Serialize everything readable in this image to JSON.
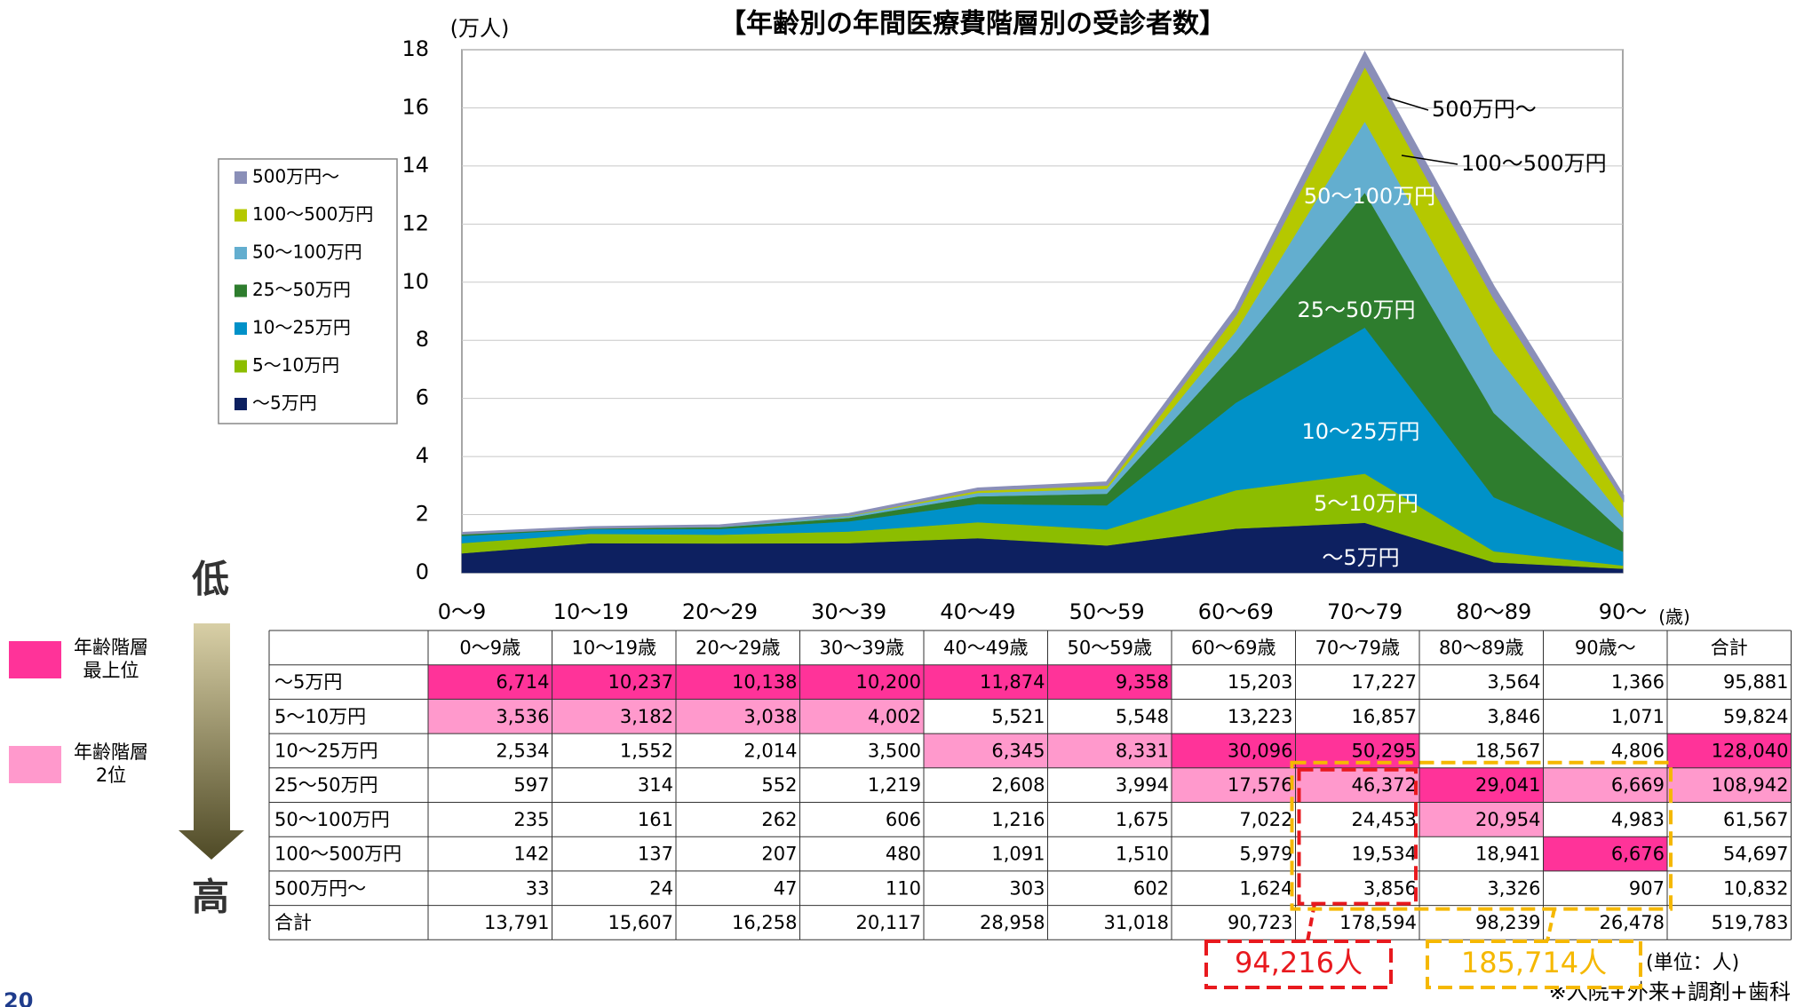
{
  "chart_data": {
    "type": "stacked_area",
    "title": "【年齢別の年間医療費階層別の受診者数】",
    "y_label": "(万人)",
    "x_label": "(歳)",
    "categories": [
      "0～9",
      "10～19",
      "20～29",
      "30～39",
      "40～49",
      "50～59",
      "60～69",
      "70～79",
      "80～89",
      "90～"
    ],
    "ylim": [
      0,
      18
    ],
    "yticks": [
      0,
      2,
      4,
      6,
      8,
      10,
      12,
      14,
      16,
      18
    ],
    "grid": true,
    "series": [
      {
        "name": "～5万円",
        "color": "#0d2060",
        "values": [
          0.67,
          1.02,
          1.01,
          1.02,
          1.19,
          0.94,
          1.52,
          1.72,
          0.36,
          0.14
        ]
      },
      {
        "name": "5～10万円",
        "color": "#8cbd00",
        "values": [
          0.35,
          0.32,
          0.3,
          0.4,
          0.55,
          0.55,
          1.32,
          1.69,
          0.38,
          0.11
        ]
      },
      {
        "name": "10～25万円",
        "color": "#0091c8",
        "values": [
          0.25,
          0.16,
          0.2,
          0.35,
          0.63,
          0.83,
          3.01,
          5.03,
          1.86,
          0.48
        ]
      },
      {
        "name": "25～50万円",
        "color": "#2e7d2e",
        "values": [
          0.06,
          0.03,
          0.06,
          0.12,
          0.26,
          0.4,
          1.76,
          4.64,
          2.9,
          0.67
        ]
      },
      {
        "name": "50～100万円",
        "color": "#63aecf",
        "values": [
          0.02,
          0.02,
          0.03,
          0.06,
          0.12,
          0.17,
          0.7,
          2.45,
          2.1,
          0.5
        ]
      },
      {
        "name": "100～500万円",
        "color": "#b5c800",
        "values": [
          0.01,
          0.01,
          0.02,
          0.05,
          0.11,
          0.15,
          0.6,
          1.95,
          1.89,
          0.67
        ]
      },
      {
        "name": "500万円～",
        "color": "#8a8fb8",
        "values": [
          0.0,
          0.0,
          0.0,
          0.01,
          0.03,
          0.06,
          0.16,
          0.39,
          0.33,
          0.09
        ]
      }
    ],
    "annotations": [
      "500万円～",
      "100～500万円",
      "50～100万円",
      "25～50万円",
      "10～25万円",
      "5～10万円",
      "～5万円"
    ]
  },
  "table": {
    "columns": [
      "0～9歳",
      "10～19歳",
      "20～29歳",
      "30～39歳",
      "40～49歳",
      "50～59歳",
      "60～69歳",
      "70～79歳",
      "80～89歳",
      "90歳～",
      "合計"
    ],
    "rows": [
      {
        "label": "～5万円",
        "cells": [
          "6,714",
          "10,237",
          "10,138",
          "10,200",
          "11,874",
          "9,358",
          "15,203",
          "17,227",
          "3,564",
          "1,366",
          "95,881"
        ],
        "rank": [
          1,
          1,
          1,
          1,
          1,
          1,
          null,
          null,
          null,
          null,
          null
        ]
      },
      {
        "label": "5～10万円",
        "cells": [
          "3,536",
          "3,182",
          "3,038",
          "4,002",
          "5,521",
          "5,548",
          "13,223",
          "16,857",
          "3,846",
          "1,071",
          "59,824"
        ],
        "rank": [
          2,
          2,
          2,
          2,
          null,
          null,
          null,
          null,
          null,
          null,
          null
        ]
      },
      {
        "label": "10～25万円",
        "cells": [
          "2,534",
          "1,552",
          "2,014",
          "3,500",
          "6,345",
          "8,331",
          "30,096",
          "50,295",
          "18,567",
          "4,806",
          "128,040"
        ],
        "rank": [
          null,
          null,
          null,
          null,
          2,
          2,
          1,
          1,
          null,
          null,
          1
        ]
      },
      {
        "label": "25～50万円",
        "cells": [
          "597",
          "314",
          "552",
          "1,219",
          "2,608",
          "3,994",
          "17,576",
          "46,372",
          "29,041",
          "6,669",
          "108,942"
        ],
        "rank": [
          null,
          null,
          null,
          null,
          null,
          null,
          2,
          2,
          1,
          2,
          2
        ]
      },
      {
        "label": "50～100万円",
        "cells": [
          "235",
          "161",
          "262",
          "606",
          "1,216",
          "1,675",
          "7,022",
          "24,453",
          "20,954",
          "4,983",
          "61,567"
        ],
        "rank": [
          null,
          null,
          null,
          null,
          null,
          null,
          null,
          null,
          2,
          null,
          null
        ]
      },
      {
        "label": "100～500万円",
        "cells": [
          "142",
          "137",
          "207",
          "480",
          "1,091",
          "1,510",
          "5,979",
          "19,534",
          "18,941",
          "6,676",
          "54,697"
        ],
        "rank": [
          null,
          null,
          null,
          null,
          null,
          null,
          null,
          null,
          null,
          1,
          null
        ]
      },
      {
        "label": "500万円～",
        "cells": [
          "33",
          "24",
          "47",
          "110",
          "303",
          "602",
          "1,624",
          "3,856",
          "3,326",
          "907",
          "10,832"
        ],
        "rank": [
          null,
          null,
          null,
          null,
          null,
          null,
          null,
          null,
          null,
          null,
          null
        ]
      },
      {
        "label": "合計",
        "cells": [
          "13,791",
          "15,607",
          "16,258",
          "20,117",
          "28,958",
          "31,018",
          "90,723",
          "178,594",
          "98,239",
          "26,478",
          "519,783"
        ],
        "rank": [
          null,
          null,
          null,
          null,
          null,
          null,
          null,
          null,
          null,
          null,
          null
        ]
      }
    ]
  },
  "rank_legend": [
    {
      "lines": [
        "年齢階層",
        "最上位"
      ],
      "color": "#ff3399"
    },
    {
      "lines": [
        "年齢階層",
        "2位"
      ],
      "color": "#ff99cc"
    }
  ],
  "arrow": {
    "low": "低",
    "high": "高"
  },
  "sums": [
    {
      "text": "94,216人",
      "color": "#e8191e"
    },
    {
      "text": "185,714人",
      "color": "#f5b800"
    }
  ],
  "unit": "(単位：人)",
  "footnote": "※入院+外来+調剤+歯科",
  "page": "20"
}
